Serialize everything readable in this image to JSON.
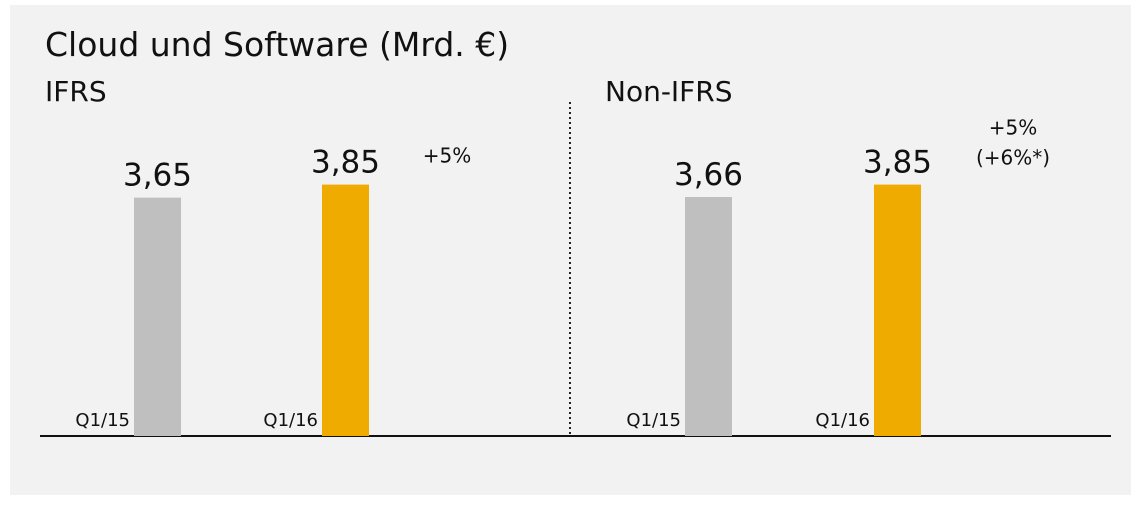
{
  "title": "Cloud und Software (Mrd. €)",
  "chart_data": [
    {
      "type": "bar",
      "title": "IFRS",
      "categories": [
        "Q1/15",
        "Q1/16"
      ],
      "values": [
        3.65,
        3.85
      ],
      "value_labels": [
        "3,65",
        "3,85"
      ],
      "colors": [
        "#bfbfbf",
        "#f0ab00"
      ],
      "annotations": [
        "+5%"
      ]
    },
    {
      "type": "bar",
      "title": "Non-IFRS",
      "categories": [
        "Q1/15",
        "Q1/16"
      ],
      "values": [
        3.66,
        3.85
      ],
      "value_labels": [
        "3,66",
        "3,85"
      ],
      "colors": [
        "#bfbfbf",
        "#f0ab00"
      ],
      "annotations": [
        "+5%",
        "(+6%*)"
      ]
    }
  ]
}
